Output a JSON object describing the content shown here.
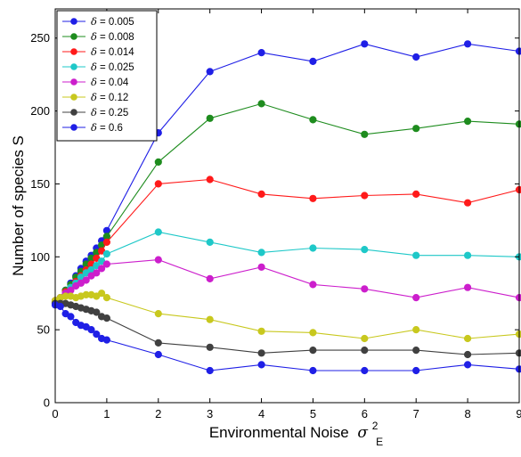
{
  "chart_data": {
    "type": "line",
    "xlabel": "Environmental Noise",
    "xlabel_symbol": "σ",
    "xlabel_sup": "2",
    "xlabel_sub": "E",
    "ylabel": "Number of species S",
    "xlim": [
      0,
      9
    ],
    "ylim": [
      0,
      270
    ],
    "xticks": [
      "0",
      "1",
      "2",
      "3",
      "4",
      "5",
      "6",
      "7",
      "8",
      "9"
    ],
    "yticks": [
      "0",
      "50",
      "100",
      "150",
      "200",
      "250"
    ],
    "legend_placement": "top-left",
    "legend_symbol": "δ",
    "x": [
      0,
      0.1,
      0.2,
      0.3,
      0.4,
      0.5,
      0.6,
      0.7,
      0.8,
      0.9,
      1,
      2,
      3,
      4,
      5,
      6,
      7,
      8,
      9
    ],
    "series": [
      {
        "name": "= 0.005",
        "color": "#1f1fe6",
        "values": [
          68,
          72,
          77,
          82,
          87,
          92,
          97,
          101,
          106,
          111,
          118,
          185,
          227,
          240,
          234,
          246,
          237,
          246,
          241
        ]
      },
      {
        "name": "= 0.008",
        "color": "#1e8c1e",
        "values": [
          69,
          72,
          77,
          81,
          86,
          90,
          95,
          99,
          103,
          108,
          114,
          165,
          195,
          205,
          194,
          184,
          188,
          193,
          191
        ]
      },
      {
        "name": "= 0.014",
        "color": "#ff1a1a",
        "values": [
          69,
          72,
          76,
          79,
          83,
          87,
          91,
          95,
          99,
          104,
          110,
          150,
          153,
          143,
          140,
          142,
          143,
          137,
          146
        ]
      },
      {
        "name": "= 0.025",
        "color": "#1ec8c8",
        "values": [
          69,
          72,
          75,
          79,
          82,
          86,
          89,
          91,
          94,
          97,
          102,
          117,
          110,
          103,
          106,
          105,
          101,
          101,
          100
        ]
      },
      {
        "name": "= 0.04",
        "color": "#cc1ecc",
        "values": [
          70,
          72,
          75,
          77,
          80,
          82,
          84,
          87,
          89,
          92,
          95,
          98,
          85,
          93,
          81,
          78,
          72,
          79,
          72
        ]
      },
      {
        "name": "= 0.12",
        "color": "#c8c81e",
        "values": [
          70,
          72,
          73,
          73,
          72,
          73,
          74,
          74,
          73,
          75,
          72,
          61,
          57,
          49,
          48,
          44,
          50,
          44,
          47
        ]
      },
      {
        "name": "= 0.25",
        "color": "#404040",
        "values": [
          68,
          68,
          68,
          67,
          66,
          65,
          64,
          63,
          62,
          59,
          58,
          41,
          38,
          34,
          36,
          36,
          36,
          33,
          34
        ]
      },
      {
        "name": "= 0.6",
        "color": "#1f1fe6",
        "values": [
          67,
          66,
          61,
          59,
          55,
          53,
          52,
          50,
          47,
          44,
          43,
          33,
          22,
          26,
          22,
          22,
          22,
          26,
          23
        ]
      }
    ]
  }
}
